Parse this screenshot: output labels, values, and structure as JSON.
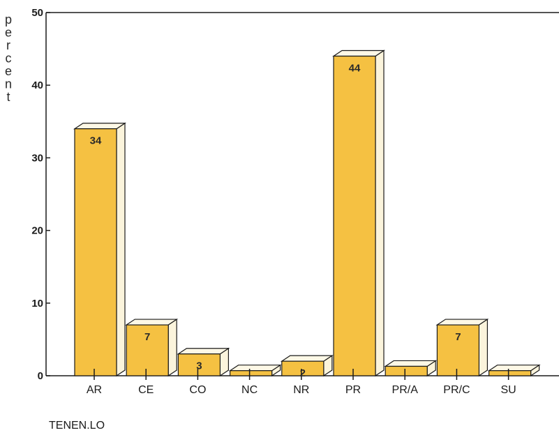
{
  "chart_data": {
    "type": "bar",
    "categories": [
      "AR",
      "CE",
      "CO",
      "NC",
      "NR",
      "PR",
      "PR/A",
      "PR/C",
      "SU"
    ],
    "values": [
      34,
      7,
      3,
      0.7,
      2,
      44,
      1.3,
      7,
      0.7
    ],
    "data_labels": [
      "34",
      "7",
      "3",
      "",
      "2",
      "44",
      "",
      "7",
      ""
    ],
    "ylabel": "percent",
    "xlabel": "TENEN.LO",
    "ylim": [
      0,
      50
    ],
    "yticks": [
      0,
      10,
      20,
      30,
      40,
      50
    ],
    "colors": {
      "bar_front": "#f5c142",
      "bar_side": "#fbf4dc",
      "bar_top": "#fdf8e6",
      "axis": "#1a1a1a"
    }
  }
}
